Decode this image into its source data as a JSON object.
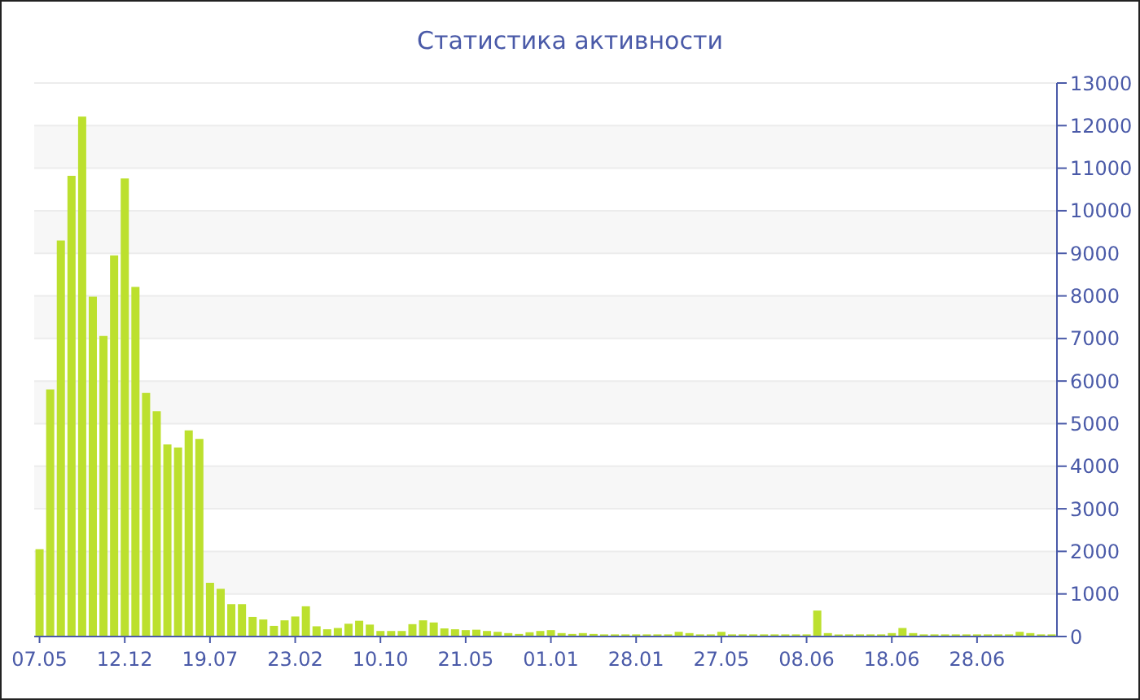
{
  "chart_data": {
    "type": "bar",
    "title": "Статистика активности",
    "categories": [
      "07.05",
      null,
      null,
      null,
      null,
      null,
      null,
      null,
      "12.12",
      null,
      null,
      null,
      null,
      null,
      null,
      null,
      "19.07",
      null,
      null,
      null,
      null,
      null,
      null,
      null,
      "23.02",
      null,
      null,
      null,
      null,
      null,
      null,
      null,
      "10.10",
      null,
      null,
      null,
      null,
      null,
      null,
      null,
      "21.05",
      null,
      null,
      null,
      null,
      null,
      null,
      null,
      "01.01",
      null,
      null,
      null,
      null,
      null,
      null,
      null,
      "28.01",
      null,
      null,
      null,
      null,
      null,
      null,
      null,
      "27.05",
      null,
      null,
      null,
      null,
      null,
      null,
      null,
      "08.06",
      null,
      null,
      null,
      null,
      null,
      null,
      null,
      "18.06",
      null,
      null,
      null,
      null,
      null,
      null,
      null,
      "28.06",
      null,
      null,
      null,
      null,
      null,
      null,
      null
    ],
    "values": [
      2050,
      5800,
      9300,
      10820,
      12210,
      7980,
      7060,
      8950,
      10760,
      8210,
      5720,
      5290,
      4510,
      4440,
      4840,
      4640,
      1260,
      1120,
      760,
      760,
      460,
      400,
      250,
      380,
      470,
      710,
      240,
      170,
      200,
      300,
      370,
      280,
      130,
      130,
      130,
      290,
      380,
      330,
      190,
      170,
      150,
      160,
      130,
      110,
      80,
      60,
      100,
      130,
      150,
      80,
      60,
      80,
      60,
      50,
      50,
      50,
      50,
      50,
      50,
      50,
      110,
      80,
      50,
      50,
      110,
      50,
      50,
      50,
      50,
      50,
      50,
      50,
      50,
      610,
      80,
      50,
      50,
      50,
      50,
      50,
      80,
      200,
      80,
      50,
      50,
      50,
      50,
      50,
      50,
      50,
      50,
      50,
      110,
      80,
      50,
      50
    ],
    "color": "#bce02e",
    "ylim": [
      0,
      13000
    ],
    "yticks": [
      0,
      1000,
      2000,
      3000,
      4000,
      5000,
      6000,
      7000,
      8000,
      9000,
      10000,
      11000,
      12000,
      13000
    ],
    "grid": "y"
  }
}
